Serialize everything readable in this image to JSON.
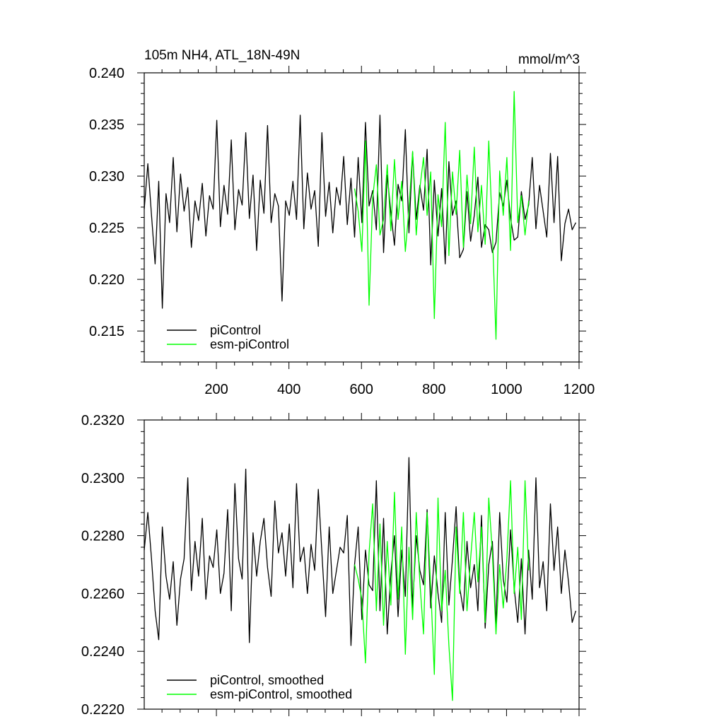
{
  "chart_data": [
    {
      "type": "line",
      "title": "105m NH4, ATL_18N-49N",
      "units": "mmol/m^3",
      "xlabel": "",
      "ylabel": "",
      "xlim": [
        1,
        1200
      ],
      "ylim": [
        0.212,
        0.24
      ],
      "xticks": [
        200,
        400,
        600,
        800,
        1000,
        1200
      ],
      "xtick_labels": [
        "200",
        "400",
        "600",
        "800",
        "1000",
        "1200"
      ],
      "yticks": [
        0.215,
        0.22,
        0.225,
        0.23,
        0.235,
        0.24
      ],
      "ytick_labels": [
        "0.215",
        "0.220",
        "0.225",
        "0.230",
        "0.235",
        "0.240"
      ],
      "grid": false,
      "legend_placement": "bottom-left",
      "series": [
        {
          "name": "piControl",
          "color": "#000000",
          "x_start": 1,
          "x_step": 10,
          "values": [
            0.2268,
            0.2312,
            0.2262,
            0.2215,
            0.2295,
            0.2172,
            0.2283,
            0.2255,
            0.2318,
            0.2246,
            0.2302,
            0.2266,
            0.2289,
            0.2231,
            0.2276,
            0.2257,
            0.2293,
            0.2242,
            0.2281,
            0.2268,
            0.2354,
            0.2251,
            0.2291,
            0.2263,
            0.2335,
            0.2248,
            0.2287,
            0.2272,
            0.2342,
            0.2259,
            0.2301,
            0.2228,
            0.2296,
            0.2264,
            0.2349,
            0.2255,
            0.2283,
            0.2271,
            0.2179,
            0.2276,
            0.2262,
            0.2295,
            0.2258,
            0.2359,
            0.2249,
            0.2303,
            0.2268,
            0.2286,
            0.2232,
            0.2342,
            0.2261,
            0.2294,
            0.2245,
            0.2289,
            0.2272,
            0.2319,
            0.2253,
            0.2298,
            0.2241,
            0.2318,
            0.2255,
            0.2352,
            0.2271,
            0.2286,
            0.2248,
            0.2359,
            0.2226,
            0.2301,
            0.2265,
            0.2233,
            0.2292,
            0.2276,
            0.2345,
            0.2245,
            0.2323,
            0.2258,
            0.2291,
            0.2267,
            0.2326,
            0.2214,
            0.2296,
            0.2242,
            0.2288,
            0.2215,
            0.2314,
            0.2262,
            0.2276,
            0.2221,
            0.2229,
            0.2285,
            0.2237,
            0.2262,
            0.2299,
            0.2231,
            0.2253,
            0.2248,
            0.2226,
            0.2236,
            0.2284,
            0.2271,
            0.2296,
            0.2259,
            0.2238,
            0.2241,
            0.2285,
            0.2258,
            0.2272,
            0.2318,
            0.2249,
            0.2291,
            0.2266,
            0.2241,
            0.2322,
            0.2255,
            0.2319,
            0.2218,
            0.2254,
            0.2268,
            0.2248,
            0.2255
          ]
        },
        {
          "name": "esm-piControl",
          "color": "#00ff00",
          "x_start": 581,
          "x_step": 10,
          "values": [
            0.2288,
            0.2266,
            0.2227,
            0.2334,
            0.2175,
            0.2279,
            0.2311,
            0.2243,
            0.2258,
            0.2311,
            0.2247,
            0.2316,
            0.2258,
            0.2295,
            0.2227,
            0.2268,
            0.2324,
            0.2243,
            0.2288,
            0.2318,
            0.2262,
            0.2304,
            0.2162,
            0.2282,
            0.2251,
            0.2352,
            0.2223,
            0.2304,
            0.2263,
            0.2325,
            0.2231,
            0.2301,
            0.2254,
            0.2328,
            0.2246,
            0.2291,
            0.2234,
            0.2334,
            0.2247,
            0.2142,
            0.2305,
            0.2262,
            0.2318,
            0.2228,
            0.2382,
            0.2255,
            0.2281,
            0.2243,
            0.2276
          ]
        }
      ]
    },
    {
      "type": "line",
      "title": "",
      "xlabel": "",
      "ylabel": "",
      "xlim": [
        1,
        1200
      ],
      "ylim": [
        0.222,
        0.232
      ],
      "xticks": [
        200,
        400,
        600,
        800,
        1000,
        1200
      ],
      "yticks": [
        0.222,
        0.224,
        0.226,
        0.228,
        0.23,
        0.232
      ],
      "ytick_labels": [
        "0.2220",
        "0.2240",
        "0.2260",
        "0.2280",
        "0.2300",
        "0.2320"
      ],
      "grid": false,
      "legend_placement": "bottom-left",
      "series": [
        {
          "name": "piControl, smoothed",
          "color": "#000000",
          "x_start": 1,
          "x_step": 10,
          "values": [
            0.2275,
            0.2288,
            0.2272,
            0.2254,
            0.2244,
            0.2283,
            0.2266,
            0.2258,
            0.2271,
            0.2249,
            0.2265,
            0.2272,
            0.23,
            0.2261,
            0.2278,
            0.2266,
            0.2286,
            0.2258,
            0.2273,
            0.2269,
            0.2282,
            0.226,
            0.2267,
            0.2289,
            0.2254,
            0.2298,
            0.2272,
            0.2265,
            0.2303,
            0.2243,
            0.2281,
            0.2266,
            0.2278,
            0.2286,
            0.2269,
            0.2259,
            0.2292,
            0.2274,
            0.2281,
            0.2266,
            0.2284,
            0.2262,
            0.2298,
            0.2271,
            0.2276,
            0.226,
            0.2277,
            0.2268,
            0.2296,
            0.2274,
            0.2252,
            0.2283,
            0.226,
            0.2268,
            0.2276,
            0.2274,
            0.2287,
            0.2242,
            0.227,
            0.2283,
            0.2251,
            0.2275,
            0.2263,
            0.2261,
            0.2299,
            0.2254,
            0.2286,
            0.2246,
            0.2267,
            0.228,
            0.2252,
            0.2275,
            0.2259,
            0.2307,
            0.2255,
            0.228,
            0.2268,
            0.2263,
            0.2289,
            0.2255,
            0.2273,
            0.226,
            0.225,
            0.2288,
            0.2256,
            0.2272,
            0.229,
            0.2262,
            0.2254,
            0.2278,
            0.2262,
            0.227,
            0.2254,
            0.2287,
            0.2248,
            0.227,
            0.2278,
            0.2249,
            0.2288,
            0.2265,
            0.2257,
            0.2282,
            0.2262,
            0.225,
            0.2272,
            0.2246,
            0.2275,
            0.2258,
            0.23,
            0.2262,
            0.2271,
            0.2254,
            0.2291,
            0.2268,
            0.2283,
            0.226,
            0.2275,
            0.2264,
            0.225,
            0.2254
          ]
        },
        {
          "name": "esm-piControl, smoothed",
          "color": "#00ff00",
          "x_start": 581,
          "x_step": 10,
          "values": [
            0.227,
            0.2265,
            0.2258,
            0.2236,
            0.2274,
            0.2291,
            0.2254,
            0.2284,
            0.2249,
            0.2278,
            0.2256,
            0.2295,
            0.2258,
            0.2283,
            0.2239,
            0.2276,
            0.2251,
            0.2288,
            0.2264,
            0.2246,
            0.2288,
            0.2262,
            0.2232,
            0.2293,
            0.2254,
            0.2268,
            0.2242,
            0.2223,
            0.2283,
            0.226,
            0.2288,
            0.2254,
            0.2272,
            0.2288,
            0.2264,
            0.2283,
            0.225,
            0.2293,
            0.2274,
            0.2246,
            0.227,
            0.2255,
            0.2272,
            0.2299,
            0.226,
            0.2276,
            0.2251,
            0.2299,
            0.2268
          ]
        }
      ]
    }
  ]
}
